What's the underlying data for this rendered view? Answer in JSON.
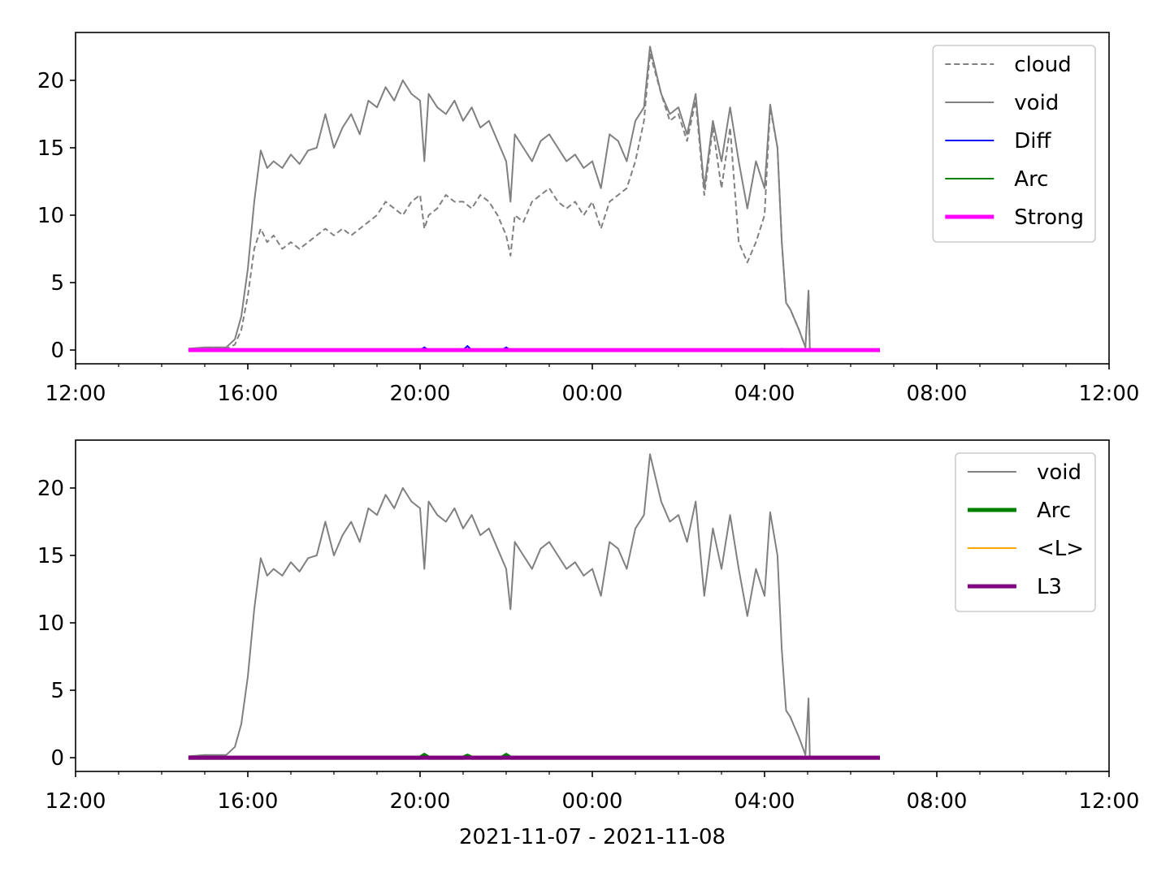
{
  "chart_data": [
    {
      "type": "line",
      "legend": "upper right",
      "xlim": [
        12,
        36
      ],
      "ylim": [
        -1.02,
        23.55
      ],
      "xticks": [
        {
          "value": 12,
          "label": "12:00"
        },
        {
          "value": 16,
          "label": "16:00"
        },
        {
          "value": 20,
          "label": "20:00"
        },
        {
          "value": 24,
          "label": "00:00"
        },
        {
          "value": 28,
          "label": "04:00"
        },
        {
          "value": 32,
          "label": "08:00"
        },
        {
          "value": 36,
          "label": "12:00"
        }
      ],
      "xminorticks": [
        13,
        14,
        15,
        17,
        18,
        19,
        21,
        22,
        23,
        25,
        26,
        27,
        29,
        30,
        31,
        33,
        34,
        35
      ],
      "yticks": [
        0,
        5,
        10,
        15,
        20
      ],
      "series": [
        {
          "name": "cloud",
          "color": "#808080",
          "dash": true,
          "linewidth": 2,
          "x": [
            14.62,
            15.0,
            15.5,
            15.7,
            15.85,
            16.0,
            16.15,
            16.3,
            16.45,
            16.6,
            16.8,
            17.0,
            17.2,
            17.4,
            17.6,
            17.8,
            18.0,
            18.2,
            18.4,
            18.6,
            18.8,
            19.0,
            19.2,
            19.4,
            19.6,
            19.8,
            20.0,
            20.1,
            20.2,
            20.4,
            20.6,
            20.8,
            21.0,
            21.2,
            21.4,
            21.6,
            21.8,
            22.0,
            22.1,
            22.2,
            22.4,
            22.6,
            22.8,
            23.0,
            23.2,
            23.4,
            23.6,
            23.8,
            24.0,
            24.2,
            24.4,
            24.6,
            24.8,
            25.0,
            25.2,
            25.34,
            25.6,
            25.8,
            26.0,
            26.2,
            26.4,
            26.6,
            26.8,
            27.0,
            27.2,
            27.4,
            27.6,
            27.8,
            28.0,
            28.13,
            28.3,
            28.4,
            28.5,
            28.6,
            28.8,
            28.95,
            29.02,
            29.05
          ],
          "values": [
            0.1,
            0.1,
            0.1,
            0.4,
            1.5,
            4,
            7.5,
            9,
            8,
            8.5,
            7.5,
            8,
            7.5,
            8,
            8.5,
            9,
            8.5,
            9,
            8.5,
            9,
            9.5,
            10,
            11,
            10.5,
            10,
            11,
            11.5,
            9,
            10,
            10.5,
            11.5,
            11,
            11,
            10.5,
            11.5,
            11,
            10,
            8.5,
            7,
            10,
            9.5,
            11,
            11.5,
            12,
            11,
            10.5,
            11,
            10,
            11,
            9,
            11,
            11.5,
            12,
            14,
            17,
            22,
            19,
            17,
            17.5,
            15.5,
            18.5,
            11.5,
            16.5,
            12,
            16.5,
            8,
            6.5,
            8,
            10,
            18,
            15,
            8,
            3.5,
            3,
            1.5,
            0.2,
            4.4,
            0.1
          ]
        },
        {
          "name": "void",
          "color": "#808080",
          "linewidth": 2,
          "x": [
            14.62,
            15.0,
            15.5,
            15.7,
            15.85,
            16.0,
            16.15,
            16.3,
            16.45,
            16.6,
            16.8,
            17.0,
            17.2,
            17.4,
            17.6,
            17.8,
            18.0,
            18.2,
            18.4,
            18.6,
            18.8,
            19.0,
            19.2,
            19.4,
            19.6,
            19.8,
            20.0,
            20.1,
            20.2,
            20.4,
            20.6,
            20.8,
            21.0,
            21.2,
            21.4,
            21.6,
            21.8,
            22.0,
            22.1,
            22.2,
            22.4,
            22.6,
            22.8,
            23.0,
            23.2,
            23.4,
            23.6,
            23.8,
            24.0,
            24.2,
            24.4,
            24.6,
            24.8,
            25.0,
            25.2,
            25.34,
            25.6,
            25.8,
            26.0,
            26.2,
            26.4,
            26.6,
            26.8,
            27.0,
            27.2,
            27.4,
            27.6,
            27.8,
            28.0,
            28.13,
            28.3,
            28.4,
            28.5,
            28.6,
            28.8,
            28.95,
            29.02,
            29.05
          ],
          "values": [
            0.1,
            0.2,
            0.2,
            0.8,
            2.5,
            6,
            11,
            14.8,
            13.5,
            14,
            13.5,
            14.5,
            13.8,
            14.8,
            15,
            17.5,
            15,
            16.5,
            17.5,
            16,
            18.5,
            18,
            19.5,
            18.5,
            20,
            19,
            18.5,
            14,
            19,
            18,
            17.5,
            18.5,
            17,
            18,
            16.5,
            17,
            15.5,
            14,
            11,
            16,
            15,
            14,
            15.5,
            16,
            15,
            14,
            14.5,
            13.5,
            14,
            12,
            16,
            15.5,
            14,
            17,
            18,
            22.5,
            19,
            17.5,
            18,
            16,
            19,
            12,
            17,
            14,
            18,
            14,
            10.5,
            14,
            12,
            18.2,
            15,
            8,
            3.5,
            3,
            1.5,
            0.2,
            4.4,
            0.1
          ]
        },
        {
          "name": "Diff",
          "color": "#0000ff",
          "linewidth": 2,
          "x": [
            14.62,
            20.0,
            20.1,
            20.2,
            21.0,
            21.1,
            21.2,
            21.9,
            22.0,
            22.1,
            28.3,
            28.4,
            28.5
          ],
          "values": [
            0,
            0,
            0.2,
            0,
            0,
            0.3,
            0,
            0,
            0.2,
            0,
            0,
            0.1,
            0
          ]
        },
        {
          "name": "Arc",
          "color": "#008000",
          "linewidth": 2,
          "x": [
            14.62,
            28.5
          ],
          "values": [
            0,
            0
          ]
        },
        {
          "name": "Strong",
          "color": "#ff00ff",
          "linewidth": 5,
          "x": [
            14.62,
            30.68
          ],
          "values": [
            0,
            0
          ]
        }
      ]
    },
    {
      "type": "line",
      "legend": "upper right",
      "xlabel": "2021-11-07 - 2021-11-08",
      "xlim": [
        12,
        36
      ],
      "ylim": [
        -1.02,
        23.55
      ],
      "xticks": [
        {
          "value": 12,
          "label": "12:00"
        },
        {
          "value": 16,
          "label": "16:00"
        },
        {
          "value": 20,
          "label": "20:00"
        },
        {
          "value": 24,
          "label": "00:00"
        },
        {
          "value": 28,
          "label": "04:00"
        },
        {
          "value": 32,
          "label": "08:00"
        },
        {
          "value": 36,
          "label": "12:00"
        }
      ],
      "xminorticks": [
        13,
        14,
        15,
        17,
        18,
        19,
        21,
        22,
        23,
        25,
        26,
        27,
        29,
        30,
        31,
        33,
        34,
        35
      ],
      "yticks": [
        0,
        5,
        10,
        15,
        20
      ],
      "series": [
        {
          "name": "void",
          "color": "#808080",
          "linewidth": 2,
          "x": [
            14.62,
            15.0,
            15.5,
            15.7,
            15.85,
            16.0,
            16.15,
            16.3,
            16.45,
            16.6,
            16.8,
            17.0,
            17.2,
            17.4,
            17.6,
            17.8,
            18.0,
            18.2,
            18.4,
            18.6,
            18.8,
            19.0,
            19.2,
            19.4,
            19.6,
            19.8,
            20.0,
            20.1,
            20.2,
            20.4,
            20.6,
            20.8,
            21.0,
            21.2,
            21.4,
            21.6,
            21.8,
            22.0,
            22.1,
            22.2,
            22.4,
            22.6,
            22.8,
            23.0,
            23.2,
            23.4,
            23.6,
            23.8,
            24.0,
            24.2,
            24.4,
            24.6,
            24.8,
            25.0,
            25.2,
            25.34,
            25.6,
            25.8,
            26.0,
            26.2,
            26.4,
            26.6,
            26.8,
            27.0,
            27.2,
            27.4,
            27.6,
            27.8,
            28.0,
            28.13,
            28.3,
            28.4,
            28.5,
            28.6,
            28.8,
            28.95,
            29.02,
            29.05
          ],
          "values": [
            0.1,
            0.2,
            0.2,
            0.8,
            2.5,
            6,
            11,
            14.8,
            13.5,
            14,
            13.5,
            14.5,
            13.8,
            14.8,
            15,
            17.5,
            15,
            16.5,
            17.5,
            16,
            18.5,
            18,
            19.5,
            18.5,
            20,
            19,
            18.5,
            14,
            19,
            18,
            17.5,
            18.5,
            17,
            18,
            16.5,
            17,
            15.5,
            14,
            11,
            16,
            15,
            14,
            15.5,
            16,
            15,
            14,
            14.5,
            13.5,
            14,
            12,
            16,
            15.5,
            14,
            17,
            18,
            22.5,
            19,
            17.5,
            18,
            16,
            19,
            12,
            17,
            14,
            18,
            14,
            10.5,
            14,
            12,
            18.2,
            15,
            8,
            3.5,
            3,
            1.5,
            0.2,
            4.4,
            0.1
          ]
        },
        {
          "name": "Arc",
          "color": "#008000",
          "linewidth": 5,
          "x": [
            14.62,
            20.0,
            20.1,
            20.2,
            21.0,
            21.1,
            21.2,
            21.9,
            22.0,
            22.1,
            30.68
          ],
          "values": [
            0,
            0,
            0.2,
            0,
            0,
            0.15,
            0,
            0,
            0.2,
            0,
            0
          ]
        },
        {
          "name": "<L>",
          "color": "#ffa500",
          "linewidth": 2,
          "x": [
            14.62,
            30.68
          ],
          "values": [
            0,
            0
          ]
        },
        {
          "name": "L3",
          "color": "#800080",
          "linewidth": 5,
          "x": [
            14.62,
            30.68
          ],
          "values": [
            0,
            0
          ]
        }
      ]
    }
  ]
}
